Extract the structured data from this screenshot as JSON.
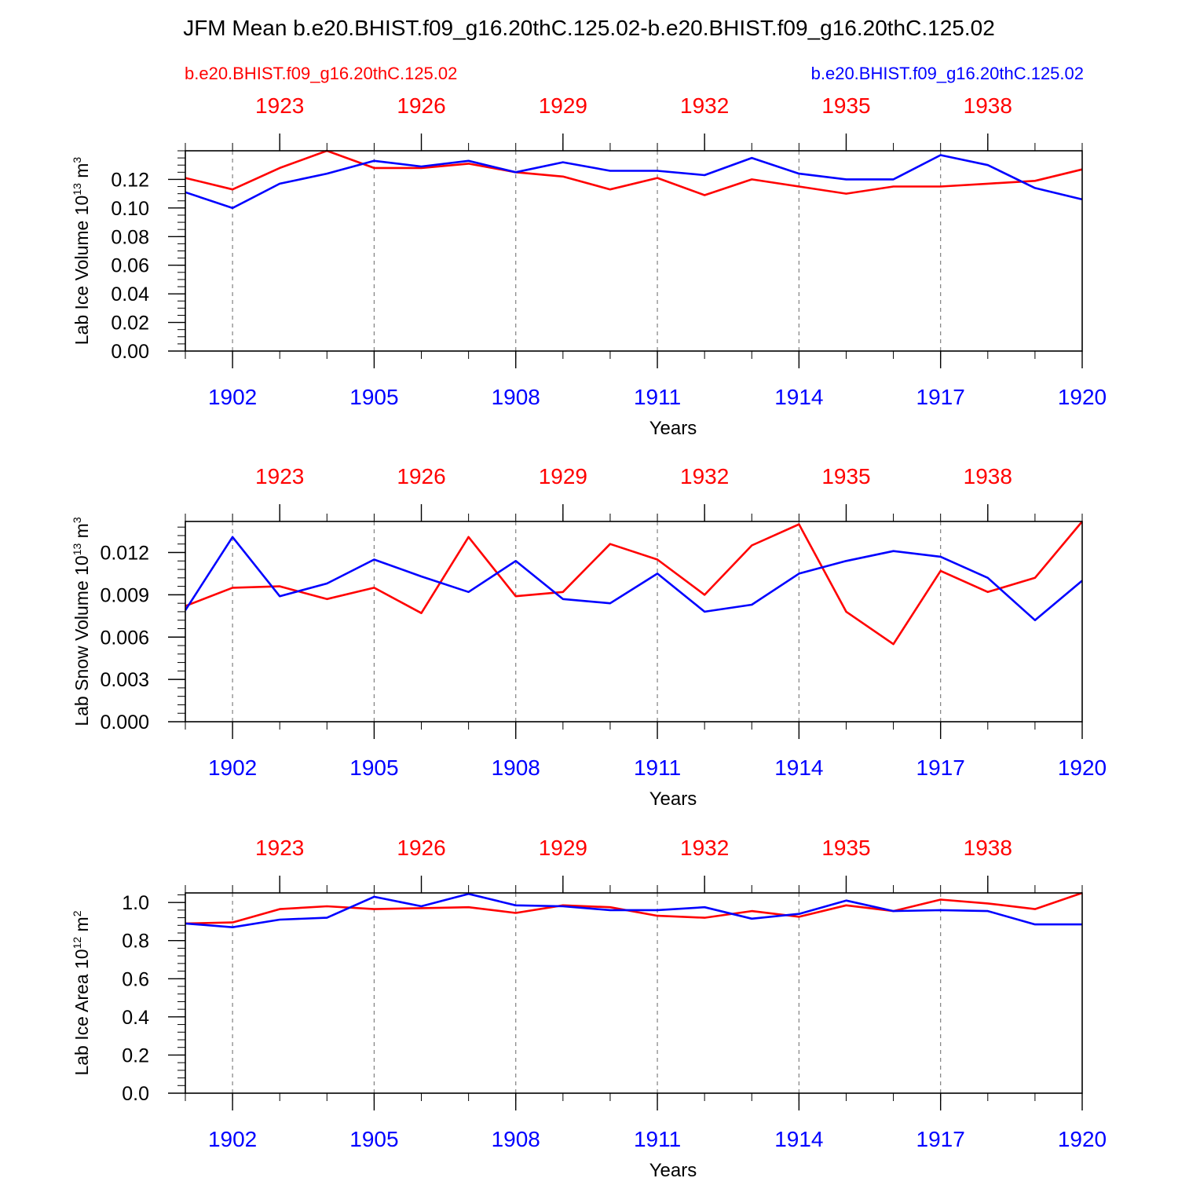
{
  "title": "JFM Mean b.e20.BHIST.f09_g16.20thC.125.02-b.e20.BHIST.f09_g16.20thC.125.02",
  "legend": {
    "red_case": "b.e20.BHIST.f09_g16.20thC.125.02",
    "blue_case": "b.e20.BHIST.f09_g16.20thC.125.02"
  },
  "colors": {
    "red": "#ff0000",
    "blue": "#0000ff",
    "axis": "#000000",
    "grid": "#808080"
  },
  "chart_data": [
    {
      "type": "line",
      "ylabel": "Lab Ice Volume 10",
      "ylabel_exp": "13",
      "ylabel_unit": " m",
      "ylabel_unit_exp": "3",
      "xlabel": "Years",
      "xlim": [
        1901,
        1920
      ],
      "ylim": [
        0,
        0.14
      ],
      "yticks": [
        0.0,
        0.02,
        0.04,
        0.06,
        0.08,
        0.1,
        0.12
      ],
      "ytick_labels": [
        "0.00",
        "0.02",
        "0.04",
        "0.06",
        "0.08",
        "0.10",
        "0.12"
      ],
      "yminor_step": 0.005,
      "bottom_ticks": [
        1902,
        1905,
        1908,
        1911,
        1914,
        1917,
        1920
      ],
      "bottom_tick_labels": [
        "1902",
        "1905",
        "1908",
        "1911",
        "1914",
        "1917",
        "1920"
      ],
      "top_ticks": [
        1902,
        1905,
        1908,
        1911,
        1914,
        1917
      ],
      "top_tick_labels": [
        "1923",
        "1926",
        "1929",
        "1932",
        "1935",
        "1938"
      ],
      "x": [
        1901,
        1902,
        1903,
        1904,
        1905,
        1906,
        1907,
        1908,
        1909,
        1910,
        1911,
        1912,
        1913,
        1914,
        1915,
        1916,
        1917,
        1918,
        1919,
        1920
      ],
      "series": [
        {
          "name": "red",
          "color": "#ff0000",
          "values": [
            0.121,
            0.113,
            0.128,
            0.14,
            0.128,
            0.128,
            0.131,
            0.125,
            0.122,
            0.113,
            0.121,
            0.109,
            0.12,
            0.115,
            0.11,
            0.115,
            0.115,
            0.117,
            0.119,
            0.127
          ]
        },
        {
          "name": "blue",
          "color": "#0000ff",
          "values": [
            0.111,
            0.1,
            0.117,
            0.124,
            0.133,
            0.129,
            0.133,
            0.125,
            0.132,
            0.126,
            0.126,
            0.123,
            0.135,
            0.124,
            0.12,
            0.12,
            0.137,
            0.13,
            0.114,
            0.106
          ]
        }
      ]
    },
    {
      "type": "line",
      "ylabel": "Lab Snow Volume 10",
      "ylabel_exp": "13",
      "ylabel_unit": " m",
      "ylabel_unit_exp": "3",
      "xlabel": "Years",
      "xlim": [
        1901,
        1920
      ],
      "ylim": [
        0,
        0.0142
      ],
      "yticks": [
        0.0,
        0.003,
        0.006,
        0.009,
        0.012
      ],
      "ytick_labels": [
        "0.000",
        "0.003",
        "0.006",
        "0.009",
        "0.012"
      ],
      "yminor_step": 0.0006,
      "bottom_ticks": [
        1902,
        1905,
        1908,
        1911,
        1914,
        1917,
        1920
      ],
      "bottom_tick_labels": [
        "1902",
        "1905",
        "1908",
        "1911",
        "1914",
        "1917",
        "1920"
      ],
      "top_ticks": [
        1902,
        1905,
        1908,
        1911,
        1914,
        1917
      ],
      "top_tick_labels": [
        "1923",
        "1926",
        "1929",
        "1932",
        "1935",
        "1938"
      ],
      "x": [
        1901,
        1902,
        1903,
        1904,
        1905,
        1906,
        1907,
        1908,
        1909,
        1910,
        1911,
        1912,
        1913,
        1914,
        1915,
        1916,
        1917,
        1918,
        1919,
        1920
      ],
      "series": [
        {
          "name": "red",
          "color": "#ff0000",
          "values": [
            0.0082,
            0.0095,
            0.0096,
            0.0087,
            0.0095,
            0.0077,
            0.0131,
            0.0089,
            0.0092,
            0.0126,
            0.0115,
            0.009,
            0.0125,
            0.014,
            0.0078,
            0.0055,
            0.0107,
            0.0092,
            0.0102,
            0.0142
          ]
        },
        {
          "name": "blue",
          "color": "#0000ff",
          "values": [
            0.0079,
            0.0131,
            0.0089,
            0.0098,
            0.0115,
            0.0103,
            0.0092,
            0.0114,
            0.0087,
            0.0084,
            0.0105,
            0.0078,
            0.0083,
            0.0105,
            0.0114,
            0.0121,
            0.0117,
            0.0102,
            0.0072,
            0.01
          ]
        }
      ]
    },
    {
      "type": "line",
      "ylabel": "Lab Ice Area 10",
      "ylabel_exp": "12",
      "ylabel_unit": " m",
      "ylabel_unit_exp": "2",
      "xlabel": "Years",
      "xlim": [
        1901,
        1920
      ],
      "ylim": [
        0,
        1.05
      ],
      "yticks": [
        0.0,
        0.2,
        0.4,
        0.6,
        0.8,
        1.0
      ],
      "ytick_labels": [
        "0.0",
        "0.2",
        "0.4",
        "0.6",
        "0.8",
        "1.0"
      ],
      "yminor_step": 0.04,
      "bottom_ticks": [
        1902,
        1905,
        1908,
        1911,
        1914,
        1917,
        1920
      ],
      "bottom_tick_labels": [
        "1902",
        "1905",
        "1908",
        "1911",
        "1914",
        "1917",
        "1920"
      ],
      "top_ticks": [
        1902,
        1905,
        1908,
        1911,
        1914,
        1917
      ],
      "top_tick_labels": [
        "1923",
        "1926",
        "1929",
        "1932",
        "1935",
        "1938"
      ],
      "x": [
        1901,
        1902,
        1903,
        1904,
        1905,
        1906,
        1907,
        1908,
        1909,
        1910,
        1911,
        1912,
        1913,
        1914,
        1915,
        1916,
        1917,
        1918,
        1919,
        1920
      ],
      "series": [
        {
          "name": "red",
          "color": "#ff0000",
          "values": [
            0.89,
            0.895,
            0.965,
            0.98,
            0.965,
            0.97,
            0.975,
            0.945,
            0.985,
            0.975,
            0.93,
            0.92,
            0.955,
            0.925,
            0.985,
            0.955,
            1.015,
            0.995,
            0.965,
            1.05
          ]
        },
        {
          "name": "blue",
          "color": "#0000ff",
          "values": [
            0.89,
            0.87,
            0.91,
            0.92,
            1.03,
            0.98,
            1.045,
            0.985,
            0.98,
            0.96,
            0.96,
            0.975,
            0.915,
            0.94,
            1.01,
            0.955,
            0.96,
            0.955,
            0.885,
            0.885
          ]
        }
      ]
    }
  ]
}
